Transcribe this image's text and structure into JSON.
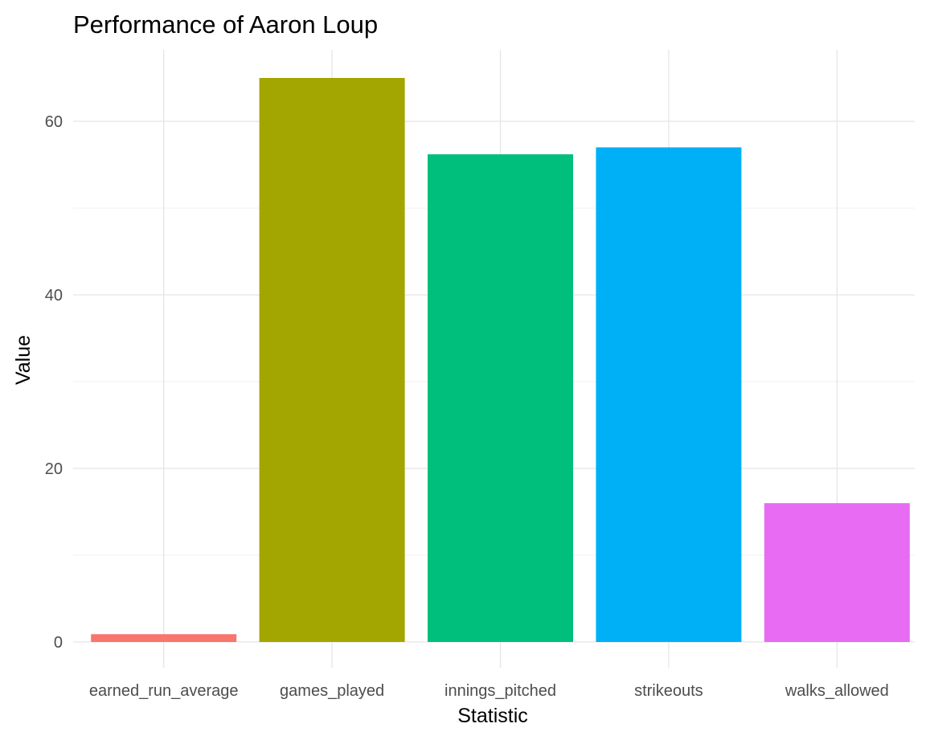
{
  "chart_data": {
    "type": "bar",
    "title": "Performance of Aaron Loup",
    "xlabel": "Statistic",
    "ylabel": "Value",
    "categories": [
      "earned_run_average",
      "games_played",
      "innings_pitched",
      "strikeouts",
      "walks_allowed"
    ],
    "values": [
      0.9,
      65,
      56.2,
      57,
      16
    ],
    "colors": [
      "#F8766D",
      "#A3A500",
      "#00BF7D",
      "#00B0F6",
      "#E76BF3"
    ],
    "ylim": [
      0,
      68.2
    ],
    "y_ticks": [
      0,
      20,
      40,
      60
    ],
    "grid": true,
    "legend": "none"
  }
}
